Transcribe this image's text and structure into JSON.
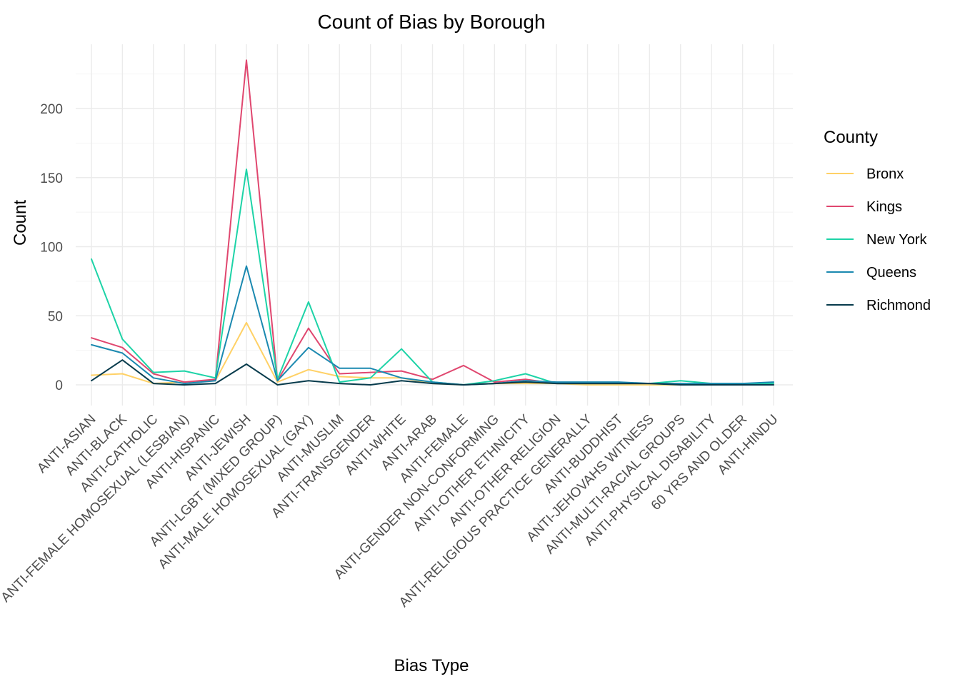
{
  "chart_data": {
    "type": "line",
    "title": "Count of Bias by Borough",
    "xlabel": "Bias Type",
    "ylabel": "Count",
    "ylim": [
      -12,
      245
    ],
    "yticks": [
      0,
      50,
      100,
      150,
      200
    ],
    "grid": true,
    "legend": {
      "title": "County",
      "position": "right"
    },
    "categories": [
      "ANTI-ASIAN",
      "ANTI-BLACK",
      "ANTI-CATHOLIC",
      "ANTI-FEMALE HOMOSEXUAL (LESBIAN)",
      "ANTI-HISPANIC",
      "ANTI-JEWISH",
      "ANTI-LGBT (MIXED GROUP)",
      "ANTI-MALE HOMOSEXUAL (GAY)",
      "ANTI-MUSLIM",
      "ANTI-TRANSGENDER",
      "ANTI-WHITE",
      "ANTI-ARAB",
      "ANTI-FEMALE",
      "ANTI-GENDER NON-CONFORMING",
      "ANTI-OTHER ETHNICITY",
      "ANTI-OTHER RELIGION",
      "ANTI-RELIGIOUS PRACTICE GENERALLY",
      "ANTI-BUDDHIST",
      "ANTI-JEHOVAHS WITNESS",
      "ANTI-MULTI-RACIAL GROUPS",
      "ANTI-PHYSICAL DISABILITY",
      "60 YRS AND OLDER",
      "ANTI-HINDU"
    ],
    "series": [
      {
        "name": "Bronx",
        "color": "#FFD166",
        "values": [
          7,
          8,
          1,
          2,
          3,
          45,
          2,
          11,
          6,
          5,
          5,
          1,
          0,
          1,
          1,
          1,
          0,
          0,
          0,
          0,
          0,
          0,
          0
        ]
      },
      {
        "name": "Kings",
        "color": "#E0476F",
        "values": [
          34,
          27,
          8,
          2,
          4,
          235,
          3,
          41,
          8,
          9,
          10,
          4,
          14,
          2,
          4,
          1,
          1,
          1,
          1,
          1,
          0,
          1,
          1
        ]
      },
      {
        "name": "New York",
        "color": "#1DD3A7",
        "values": [
          91,
          33,
          9,
          10,
          5,
          156,
          4,
          60,
          2,
          5,
          26,
          2,
          0,
          3,
          8,
          1,
          1,
          1,
          1,
          3,
          1,
          1,
          1
        ]
      },
      {
        "name": "Queens",
        "color": "#1B89B0",
        "values": [
          29,
          23,
          5,
          1,
          3,
          86,
          3,
          27,
          12,
          12,
          5,
          2,
          0,
          1,
          3,
          2,
          2,
          2,
          1,
          1,
          1,
          1,
          2
        ]
      },
      {
        "name": "Richmond",
        "color": "#073B4C",
        "values": [
          3,
          18,
          1,
          0,
          1,
          15,
          0,
          3,
          1,
          0,
          3,
          1,
          0,
          1,
          2,
          1,
          1,
          1,
          1,
          0,
          0,
          0,
          0
        ]
      }
    ]
  }
}
